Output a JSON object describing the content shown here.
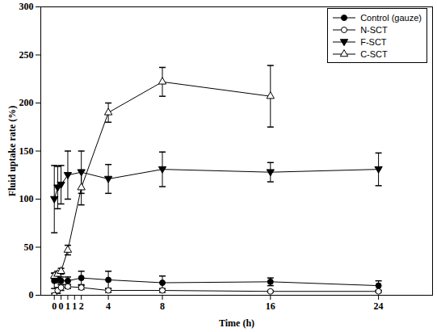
{
  "chart_data": {
    "type": "line",
    "x_label": "Time (h)",
    "y_label": "Fluid uptake rate (%)",
    "x": [
      0,
      0.25,
      0.5,
      1,
      2,
      4,
      8,
      16,
      24
    ],
    "xlim": [
      -1,
      28
    ],
    "xticks": [
      0,
      {
        "value": 0.5,
        "label": "0"
      },
      1,
      {
        "value": 1.5,
        "label": "1"
      },
      2,
      4,
      8,
      16,
      24
    ],
    "ylim": [
      0,
      300
    ],
    "yticks": [
      0,
      50,
      100,
      150,
      200,
      250,
      300
    ],
    "legend": "top-right",
    "series": [
      {
        "name": "Control (gauze)",
        "color": "#000000",
        "marker": "circle",
        "values": [
          15,
          18,
          15,
          15,
          18,
          16,
          13,
          14,
          10
        ],
        "errors": [
          8,
          5,
          4,
          4,
          7,
          9,
          7,
          4,
          5
        ]
      },
      {
        "name": "N-SCT",
        "color": "#000000",
        "marker": "circle_open",
        "values": [
          0,
          5,
          8,
          9,
          8,
          5,
          5,
          4,
          4
        ],
        "errors": [
          2,
          3,
          3,
          2,
          2,
          2,
          2,
          1,
          1
        ]
      },
      {
        "name": "F-SCT",
        "color": "#000000",
        "marker": "triangle_down",
        "values": [
          100,
          112,
          115,
          125,
          128,
          121,
          131,
          128,
          131
        ],
        "errors": [
          35,
          22,
          20,
          25,
          22,
          15,
          18,
          10,
          17
        ]
      },
      {
        "name": "C-SCT",
        "color": "#000000",
        "marker": "triangle_open",
        "values": [
          20,
          22,
          25,
          47,
          112,
          190,
          222,
          207,
          null
        ],
        "errors": [
          3,
          3,
          3,
          5,
          18,
          10,
          15,
          32,
          null
        ]
      }
    ]
  }
}
